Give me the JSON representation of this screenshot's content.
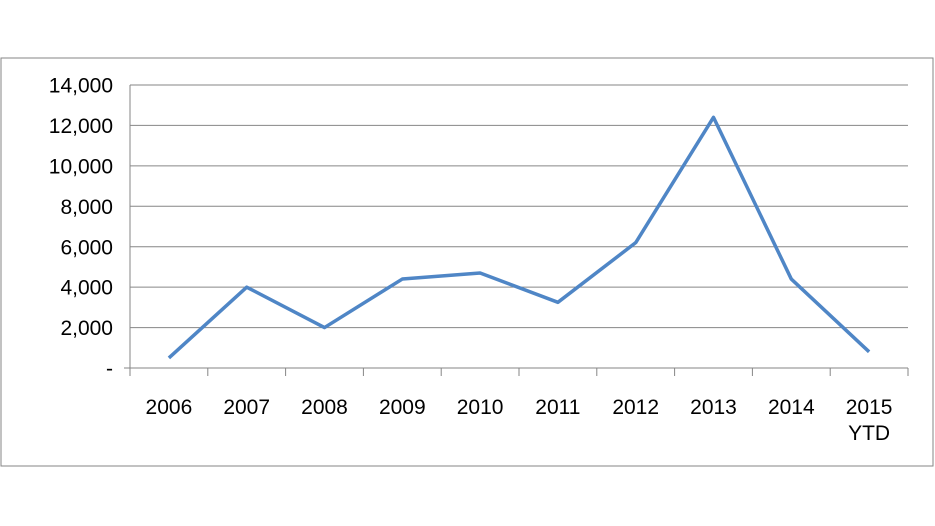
{
  "chart_data": {
    "type": "line",
    "categories": [
      "2006",
      "2007",
      "2008",
      "2009",
      "2010",
      "2011",
      "2012",
      "2013",
      "2014",
      "2015 YTD"
    ],
    "values": [
      500,
      4000,
      2000,
      4400,
      4700,
      3250,
      6200,
      12400,
      4400,
      800
    ],
    "color": "#4f86c6",
    "ylim": [
      0,
      14000
    ],
    "yticks": [
      {
        "value": 0,
        "label": "-"
      },
      {
        "value": 2000,
        "label": "2,000"
      },
      {
        "value": 4000,
        "label": "4,000"
      },
      {
        "value": 6000,
        "label": "6,000"
      },
      {
        "value": 8000,
        "label": "8,000"
      },
      {
        "value": 10000,
        "label": "10,000"
      },
      {
        "value": 12000,
        "label": "12,000"
      },
      {
        "value": 14000,
        "label": "14,000"
      }
    ],
    "grid": true
  }
}
